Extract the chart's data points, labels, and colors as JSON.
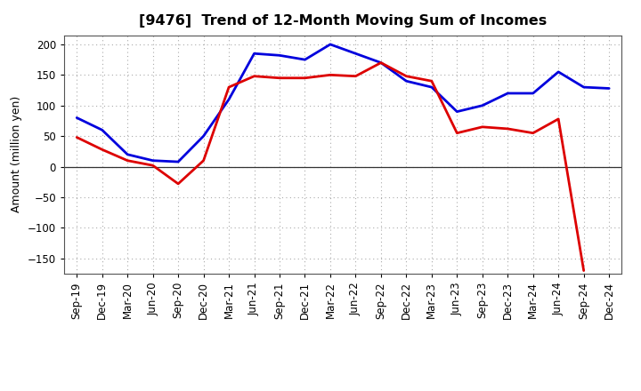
{
  "title": "[9476]  Trend of 12-Month Moving Sum of Incomes",
  "ylabel": "Amount (million yen)",
  "background_color": "#ffffff",
  "grid_color": "#aaaaaa",
  "x_labels": [
    "Sep-19",
    "Dec-19",
    "Mar-20",
    "Jun-20",
    "Sep-20",
    "Dec-20",
    "Mar-21",
    "Jun-21",
    "Sep-21",
    "Dec-21",
    "Mar-22",
    "Jun-22",
    "Sep-22",
    "Dec-22",
    "Mar-23",
    "Jun-23",
    "Sep-23",
    "Dec-23",
    "Mar-24",
    "Jun-24",
    "Sep-24",
    "Dec-24"
  ],
  "ordinary_income": [
    80,
    60,
    20,
    10,
    8,
    50,
    110,
    185,
    182,
    175,
    200,
    185,
    170,
    140,
    130,
    90,
    100,
    120,
    120,
    155,
    130,
    128
  ],
  "net_income": [
    48,
    28,
    10,
    2,
    -28,
    10,
    130,
    148,
    145,
    145,
    150,
    148,
    170,
    148,
    140,
    55,
    65,
    62,
    55,
    78,
    -170,
    null
  ],
  "ordinary_color": "#0000dd",
  "net_color": "#dd0000",
  "ylim": [
    -175,
    215
  ],
  "yticks": [
    -150,
    -100,
    -50,
    0,
    50,
    100,
    150,
    200
  ],
  "line_width": 2.0,
  "title_fontsize": 11.5,
  "ylabel_fontsize": 9,
  "tick_fontsize": 8.5,
  "legend_fontsize": 9.5
}
